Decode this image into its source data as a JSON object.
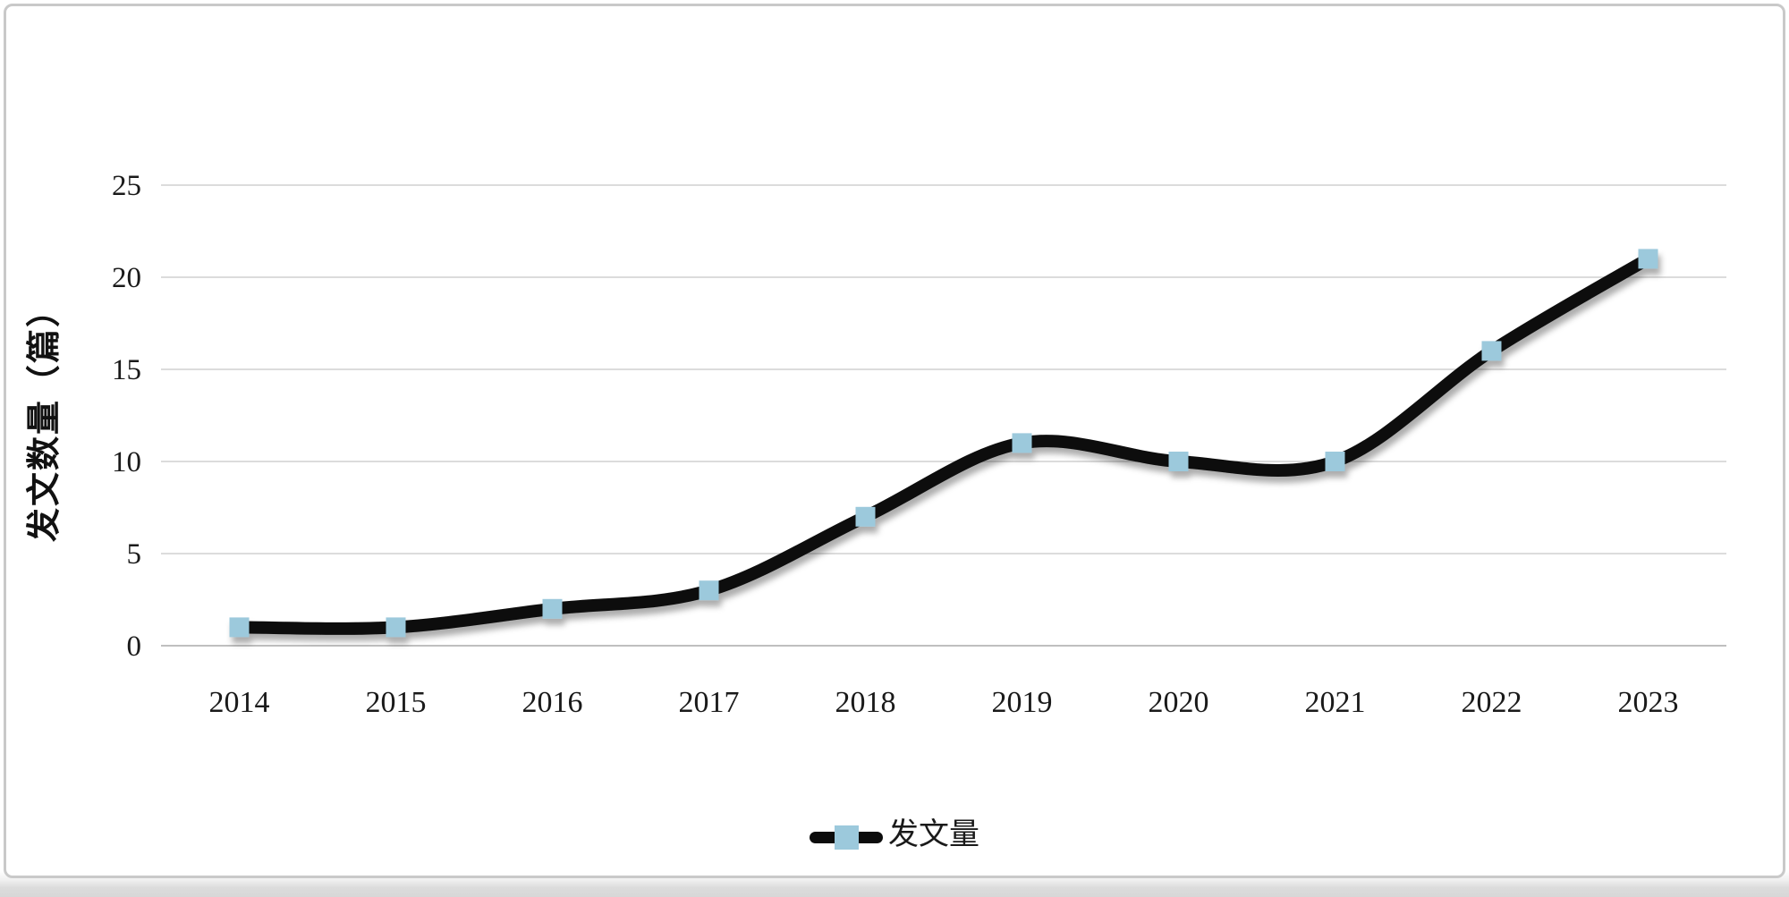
{
  "chart_data": {
    "type": "line",
    "title": "",
    "xlabel": "",
    "ylabel": "发文数量（篇）",
    "categories": [
      "2014",
      "2015",
      "2016",
      "2017",
      "2018",
      "2019",
      "2020",
      "2021",
      "2022",
      "2023"
    ],
    "series": [
      {
        "name": "发文量",
        "values": [
          1,
          1,
          2,
          3,
          7,
          11,
          10,
          10,
          16,
          21
        ]
      }
    ],
    "ylim": [
      0,
      25
    ],
    "yticks": [
      0,
      5,
      10,
      15,
      20,
      25
    ],
    "grid": true,
    "smooth": true,
    "legend_position": "bottom",
    "colors": {
      "line": "#0c0c0c",
      "marker": "#9cc9dc",
      "gridline": "#dcdcdc",
      "axis_line": "#bfbfbf",
      "text": "#1a1a1a"
    }
  },
  "page": {
    "card_border": "#c9c9c9",
    "bottom_strip": "#d7d7d7"
  }
}
